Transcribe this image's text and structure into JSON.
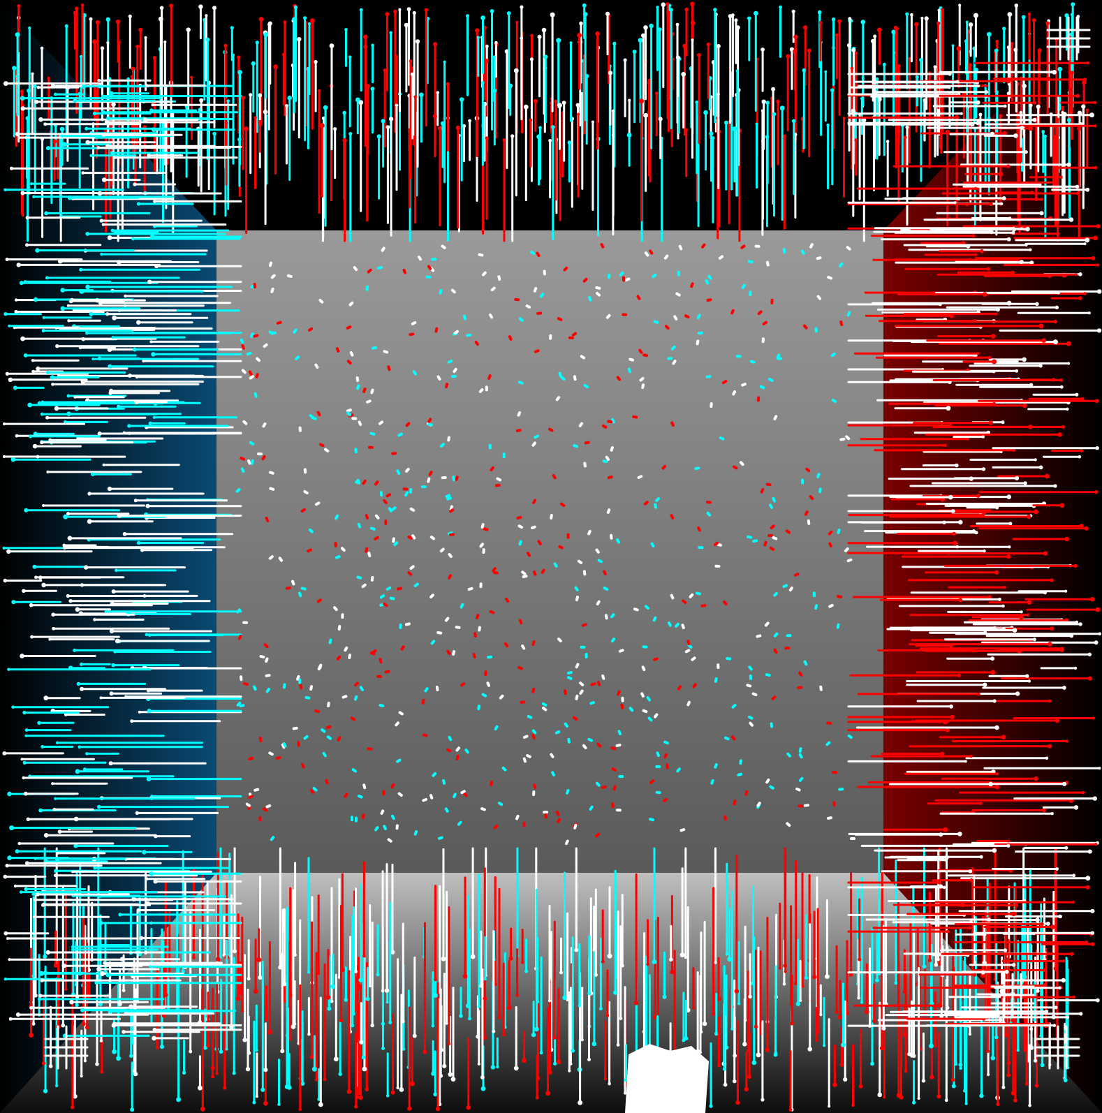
{
  "scene": {
    "description_free": true,
    "stroke_colors": {
      "red": "#ff0000",
      "cyan": "#00ffff",
      "white": "#ffffff"
    },
    "panel_colors": {
      "top": "#000000",
      "left_outer": "#000000",
      "left_inner": "#0a4a73",
      "right_outer": "#000000",
      "right_inner": "#7a0000",
      "bottom_inner": "#bfbfbf",
      "bottom_outer": "#0d0d0d",
      "center_top": "#9a9a9a",
      "center_bottom": "#5a5a5a"
    }
  }
}
